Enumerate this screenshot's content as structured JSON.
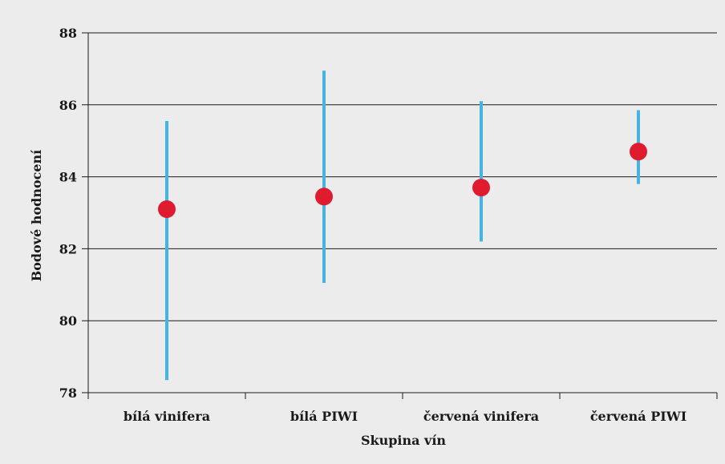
{
  "chart_data": {
    "type": "scatter",
    "title": "",
    "xlabel": "Skupina vín",
    "ylabel": "Bodové hodnocení",
    "ylim": [
      78,
      88
    ],
    "yticks": [
      78,
      80,
      82,
      84,
      86,
      88
    ],
    "grid": true,
    "categories": [
      "bílá vinifera",
      "bílá PIWI",
      "červená vinifera",
      "červená PIWI"
    ],
    "series": [
      {
        "values": [
          83.1,
          83.45,
          83.7,
          84.7
        ],
        "low": [
          78.35,
          81.05,
          82.2,
          83.8
        ],
        "high": [
          85.55,
          86.95,
          86.1,
          85.85
        ]
      }
    ],
    "colors": {
      "point": "#e01b2f",
      "range": "#45b3e3",
      "grid": "#1a1a1a",
      "background": "#ececec"
    }
  }
}
